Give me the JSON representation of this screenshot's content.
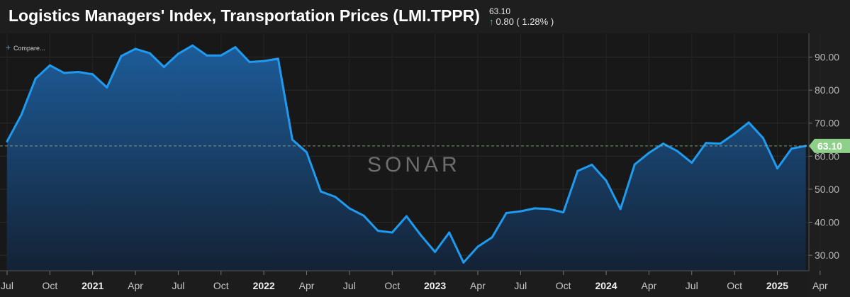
{
  "header": {
    "title": "Logistics Managers' Index, Transportation Prices (LMI.TPPR)",
    "last_value": "63.10",
    "change": "0.80 ( 1.28% )"
  },
  "compare_label": "Compare...",
  "watermark": "SONAR",
  "chart_data": {
    "type": "area",
    "title": "Logistics Managers' Index, Transportation Prices (LMI.TPPR)",
    "series": [
      {
        "values": [
          64.5,
          72.5,
          83.5,
          87.5,
          85.2,
          85.5,
          84.8,
          80.8,
          90.3,
          92.5,
          91.2,
          87.0,
          91.0,
          93.5,
          90.5,
          90.5,
          93.0,
          88.5,
          88.8,
          89.5,
          65.0,
          61.2,
          49.3,
          47.7,
          44.2,
          42.0,
          37.4,
          36.9,
          41.8,
          36.1,
          31.0,
          36.9,
          27.8,
          32.6,
          35.4,
          42.8,
          43.3,
          44.2,
          44.0,
          43.0,
          55.5,
          57.4,
          52.6,
          44.0,
          57.5,
          61.0,
          63.8,
          61.5,
          58.0,
          64.0,
          63.8,
          66.8,
          70.2,
          65.5,
          56.3,
          62.3,
          63.1
        ]
      }
    ],
    "x_start": "2020-07",
    "x_tick_labels": [
      "Jul",
      "Oct",
      "2021",
      "Apr",
      "Jul",
      "Oct",
      "2022",
      "Apr",
      "Jul",
      "Oct",
      "2023",
      "Apr",
      "Jul",
      "Oct",
      "2024",
      "Apr",
      "Jul",
      "Oct",
      "2025",
      "Apr"
    ],
    "y_ticks": [
      "30.00",
      "40.00",
      "50.00",
      "60.00",
      "70.00",
      "80.00",
      "90.00"
    ],
    "y_range": [
      25.3,
      97.2
    ],
    "last_value_label": "63.10",
    "grid": true,
    "colors": {
      "line": "#1e9bf0",
      "area_top": "#1d5c99",
      "area_bottom": "#142235",
      "last_marker": "#8ed08a",
      "reference_line": "#8fb98c"
    }
  }
}
